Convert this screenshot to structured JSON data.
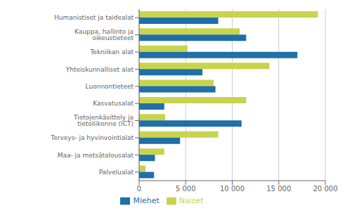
{
  "chart_data": {
    "type": "bar",
    "orientation": "horizontal",
    "categories": [
      "Humanistiset ja taidealat",
      "Kauppa, hallinto ja oikeustieteet",
      "Tekniikan alat",
      "Yhteiskunnalliset alat",
      "Luonnontieteet",
      "Kasvatusalat",
      "Tietojenkäsittely ja tietoliikenne (ICT)",
      "Terveys- ja hyvinvointialat",
      "Maa- ja metsätalousalat",
      "Palvelualat"
    ],
    "series": [
      {
        "name": "Naiset",
        "color": "#c8d44e",
        "values": [
          19200,
          10800,
          5200,
          14000,
          8000,
          11500,
          2800,
          8500,
          2700,
          700
        ]
      },
      {
        "name": "Miehet",
        "color": "#1f6fa8",
        "values": [
          8500,
          11500,
          17000,
          6800,
          8200,
          2700,
          11000,
          4400,
          1700,
          1600
        ]
      }
    ],
    "xlim": [
      0,
      20000
    ],
    "xticks": [
      0,
      {
        "value": 5000,
        "label": "5 000"
      },
      {
        "value": 10000,
        "label": "10 000"
      },
      {
        "value": 15000,
        "label": "15 000"
      },
      {
        "value": 20000,
        "label": "20 000"
      }
    ],
    "grid": true,
    "legend": "bottom"
  }
}
